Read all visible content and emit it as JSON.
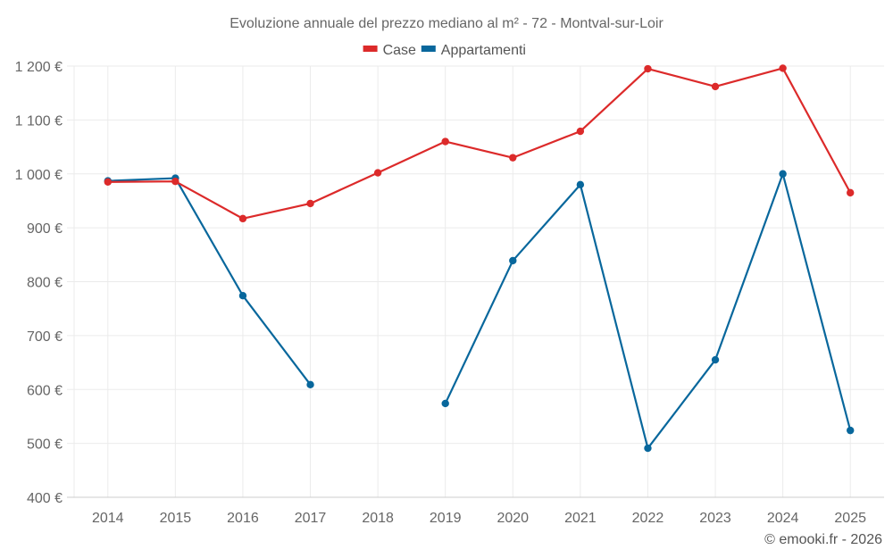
{
  "chart_data": {
    "type": "line",
    "title": "Evoluzione annuale del prezzo mediano al m² - 72 - Montval-sur-Loir",
    "xlabel": "",
    "ylabel": "",
    "x": [
      "2014",
      "2015",
      "2016",
      "2017",
      "2018",
      "2019",
      "2020",
      "2021",
      "2022",
      "2023",
      "2024",
      "2025"
    ],
    "ylim": [
      400,
      1200
    ],
    "yticks": [
      400,
      500,
      600,
      700,
      800,
      900,
      1000,
      1100,
      1200
    ],
    "ytick_labels": [
      "400 €",
      "500 €",
      "600 €",
      "700 €",
      "800 €",
      "900 €",
      "1 000 €",
      "1 100 €",
      "1 200 €"
    ],
    "grid": true,
    "legend_position": "top-center",
    "series": [
      {
        "name": "Case",
        "color": "#dc2a2a",
        "values": [
          985,
          986,
          917,
          945,
          1002,
          1060,
          1030,
          1079,
          1195,
          1162,
          1196,
          965
        ]
      },
      {
        "name": "Appartamenti",
        "color": "#08679c",
        "values": [
          987,
          992,
          774,
          609,
          null,
          574,
          839,
          980,
          491,
          655,
          1000,
          524
        ]
      }
    ]
  },
  "credit": "© emooki.fr - 2026"
}
